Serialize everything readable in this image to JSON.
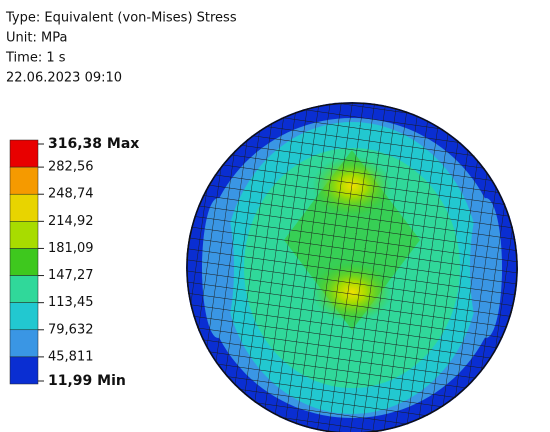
{
  "header": {
    "lines": [
      "Type: Equivalent (von-Mises) Stress",
      "Unit: MPa",
      "Time: 1 s",
      "22.06.2023 09:10"
    ]
  },
  "legend": {
    "labels": [
      "316,38 Max",
      "282,56",
      "248,74",
      "214,92",
      "181,09",
      "147,27",
      "113,45",
      "79,632",
      "45,811",
      "11,99 Min"
    ],
    "colors": [
      "#e80000",
      "#f59a00",
      "#e8d400",
      "#a8dc00",
      "#3ec81e",
      "#30d89a",
      "#22c8d0",
      "#3a96e4",
      "#0a2ed2"
    ]
  }
}
